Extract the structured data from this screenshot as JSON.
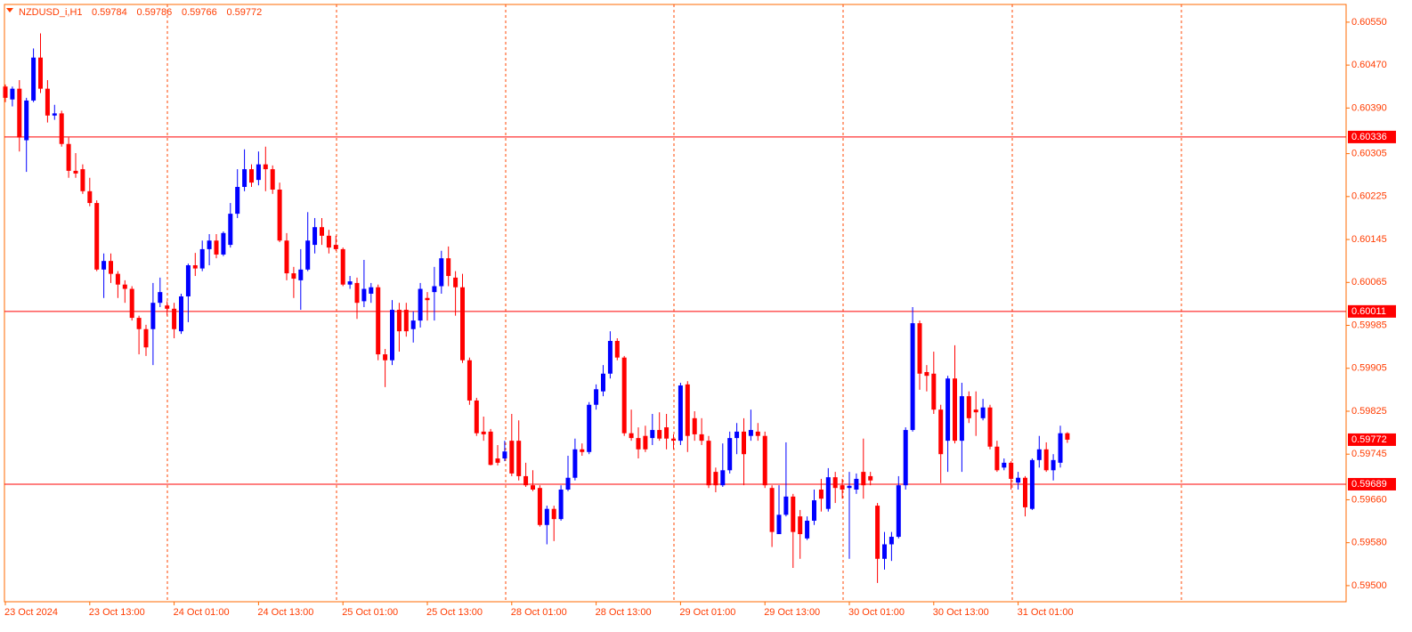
{
  "chart_data": {
    "type": "candlestick",
    "symbol": "NZDUSD_i,H1",
    "up_color": "#0000ff",
    "down_color": "#ff0000",
    "ylim": [
      0.5947,
      0.60583
    ],
    "yticks": [
      {
        "value": 0.6055,
        "label": "0.60550"
      },
      {
        "value": 0.6047,
        "label": "0.60470"
      },
      {
        "value": 0.6039,
        "label": "0.60390"
      },
      0.60305,
      0.60225,
      0.60145,
      0.60065,
      0.59985,
      0.59905,
      0.59825,
      0.59745,
      {
        "value": 0.5966,
        "label": "0.59660"
      },
      {
        "value": 0.5958,
        "label": "0.59580"
      },
      {
        "value": 0.595,
        "label": "0.59500"
      }
    ],
    "hlines": [
      0.60336,
      0.60011,
      0.59689
    ],
    "categories": [
      "23 Oct 2024",
      null,
      null,
      null,
      null,
      null,
      null,
      null,
      null,
      null,
      null,
      null,
      "23 Oct 13:00",
      null,
      null,
      null,
      null,
      null,
      null,
      null,
      null,
      null,
      null,
      null,
      "24 Oct 01:00",
      null,
      null,
      null,
      null,
      null,
      null,
      null,
      null,
      null,
      null,
      null,
      "24 Oct 13:00",
      null,
      null,
      null,
      null,
      null,
      null,
      null,
      null,
      null,
      null,
      null,
      "25 Oct 01:00",
      null,
      null,
      null,
      null,
      null,
      null,
      null,
      null,
      null,
      null,
      null,
      "25 Oct 13:00",
      null,
      null,
      null,
      null,
      null,
      null,
      null,
      null,
      null,
      null,
      null,
      "28 Oct 01:00",
      null,
      null,
      null,
      null,
      null,
      null,
      null,
      null,
      null,
      null,
      null,
      "28 Oct 13:00",
      null,
      null,
      null,
      null,
      null,
      null,
      null,
      null,
      null,
      null,
      null,
      "29 Oct 01:00",
      null,
      null,
      null,
      null,
      null,
      null,
      null,
      null,
      null,
      null,
      null,
      "29 Oct 13:00",
      null,
      null,
      null,
      null,
      null,
      null,
      null,
      null,
      null,
      null,
      null,
      "30 Oct 01:00",
      null,
      null,
      null,
      null,
      null,
      null,
      null,
      null,
      null,
      null,
      null,
      "30 Oct 13:00",
      null,
      null,
      null,
      null,
      null,
      null,
      null,
      null,
      null,
      null,
      null,
      "31 Oct 01:00",
      null,
      null,
      null,
      null,
      null,
      null,
      null
    ],
    "ohlc": [
      [
        0.6043,
        0.60434,
        0.60401,
        0.60409
      ],
      [
        0.60406,
        0.6043,
        0.60393,
        0.60426
      ],
      [
        0.60426,
        0.60442,
        0.60309,
        0.60335
      ],
      [
        0.6033,
        0.60409,
        0.60271,
        0.60404
      ],
      [
        0.60404,
        0.60501,
        0.60401,
        0.60484
      ],
      [
        0.60484,
        0.60529,
        0.60418,
        0.60426
      ],
      [
        0.60426,
        0.60442,
        0.60363,
        0.60376
      ],
      [
        0.60376,
        0.60396,
        0.60368,
        0.6038
      ],
      [
        0.6038,
        0.60385,
        0.60318,
        0.60323
      ],
      [
        0.60323,
        0.60335,
        0.6026,
        0.60273
      ],
      [
        0.60273,
        0.60306,
        0.6026,
        0.60268
      ],
      [
        0.60276,
        0.60285,
        0.6023,
        0.60235
      ],
      [
        0.60235,
        0.6026,
        0.60207,
        0.60213
      ],
      [
        0.60213,
        0.60218,
        0.60086,
        0.60089
      ],
      [
        0.60089,
        0.60119,
        0.60036,
        0.60105
      ],
      [
        0.60105,
        0.60119,
        0.60064,
        0.60081
      ],
      [
        0.60081,
        0.60086,
        0.60036,
        0.60061
      ],
      [
        0.60061,
        0.60069,
        0.60027,
        0.60053
      ],
      [
        0.60053,
        0.60058,
        0.59994,
        0.59999
      ],
      [
        0.59999,
        0.60003,
        0.59931,
        0.59978
      ],
      [
        0.59978,
        0.59986,
        0.59928,
        0.59944
      ],
      [
        0.59978,
        0.60064,
        0.59911,
        0.60027
      ],
      [
        0.60027,
        0.60074,
        0.60019,
        0.60047
      ],
      [
        0.60022,
        0.6003,
        0.60003,
        0.60016
      ],
      [
        0.60016,
        0.60027,
        0.59961,
        0.59978
      ],
      [
        0.59974,
        0.60044,
        0.59969,
        0.60039
      ],
      [
        0.60039,
        0.601,
        0.59991,
        0.60097
      ],
      [
        0.60097,
        0.6012,
        0.60077,
        0.60091
      ],
      [
        0.60091,
        0.60143,
        0.60086,
        0.60127
      ],
      [
        0.60127,
        0.60155,
        0.60097,
        0.60143
      ],
      [
        0.60143,
        0.60155,
        0.6011,
        0.60117
      ],
      [
        0.60117,
        0.6016,
        0.60114,
        0.60157
      ],
      [
        0.60135,
        0.60213,
        0.6013,
        0.60193
      ],
      [
        0.60193,
        0.60276,
        0.60185,
        0.60243
      ],
      [
        0.60243,
        0.60313,
        0.60235,
        0.60276
      ],
      [
        0.60276,
        0.60285,
        0.60243,
        0.60251
      ],
      [
        0.60256,
        0.60309,
        0.60246,
        0.60285
      ],
      [
        0.60285,
        0.60318,
        0.60235,
        0.60276
      ],
      [
        0.60276,
        0.60283,
        0.6023,
        0.60238
      ],
      [
        0.60238,
        0.60251,
        0.6014,
        0.60143
      ],
      [
        0.60143,
        0.60157,
        0.60069,
        0.60082
      ],
      [
        0.60082,
        0.60094,
        0.60036,
        0.60072
      ],
      [
        0.60069,
        0.60127,
        0.60014,
        0.60089
      ],
      [
        0.60089,
        0.60196,
        0.60086,
        0.60143
      ],
      [
        0.60135,
        0.60185,
        0.60119,
        0.60168
      ],
      [
        0.60168,
        0.60185,
        0.60135,
        0.60152
      ],
      [
        0.60152,
        0.60163,
        0.60119,
        0.6013
      ],
      [
        0.60135,
        0.60152,
        0.60124,
        0.60127
      ],
      [
        0.60127,
        0.6013,
        0.60058,
        0.60061
      ],
      [
        0.60061,
        0.60077,
        0.60053,
        0.60067
      ],
      [
        0.60064,
        0.60074,
        0.59997,
        0.60027
      ],
      [
        0.6003,
        0.60107,
        0.60019,
        0.60053
      ],
      [
        0.60044,
        0.60064,
        0.60027,
        0.60056
      ],
      [
        0.60056,
        0.60061,
        0.5992,
        0.59931
      ],
      [
        0.59931,
        0.59941,
        0.5987,
        0.5992
      ],
      [
        0.5992,
        0.60032,
        0.59911,
        0.60014
      ],
      [
        0.60014,
        0.60027,
        0.59936,
        0.59974
      ],
      [
        0.60014,
        0.60027,
        0.59964,
        0.59974
      ],
      [
        0.59978,
        0.60011,
        0.59953,
        0.59994
      ],
      [
        0.59994,
        0.60064,
        0.59981,
        0.60053
      ],
      [
        0.60036,
        0.60047,
        0.59994,
        0.60032
      ],
      [
        0.60047,
        0.60094,
        0.59994,
        0.60058
      ],
      [
        0.60058,
        0.60124,
        0.60044,
        0.6011
      ],
      [
        0.6011,
        0.60132,
        0.60058,
        0.60077
      ],
      [
        0.60074,
        0.60086,
        0.60003,
        0.60056
      ],
      [
        0.60056,
        0.60081,
        0.59915,
        0.5992
      ],
      [
        0.5992,
        0.59925,
        0.59837,
        0.59845
      ],
      [
        0.59845,
        0.5985,
        0.59779,
        0.59784
      ],
      [
        0.59787,
        0.59815,
        0.5977,
        0.59782
      ],
      [
        0.59787,
        0.59792,
        0.59724,
        0.59725
      ],
      [
        0.59737,
        0.59762,
        0.59724,
        0.59729
      ],
      [
        0.59737,
        0.5977,
        0.59732,
        0.5975
      ],
      [
        0.5977,
        0.5982,
        0.59704,
        0.59709
      ],
      [
        0.5977,
        0.59808,
        0.59696,
        0.59704
      ],
      [
        0.59704,
        0.59729,
        0.59684,
        0.59687
      ],
      [
        0.59687,
        0.59715,
        0.59676,
        0.59679
      ],
      [
        0.59682,
        0.59687,
        0.5961,
        0.59613
      ],
      [
        0.59613,
        0.59649,
        0.59577,
        0.59643
      ],
      [
        0.59643,
        0.59649,
        0.59583,
        0.59624
      ],
      [
        0.59624,
        0.59687,
        0.59621,
        0.59679
      ],
      [
        0.59679,
        0.59742,
        0.59676,
        0.59701
      ],
      [
        0.59701,
        0.59774,
        0.59696,
        0.59754
      ],
      [
        0.59754,
        0.59765,
        0.59742,
        0.59749
      ],
      [
        0.59749,
        0.59842,
        0.59745,
        0.59837
      ],
      [
        0.59837,
        0.59875,
        0.59828,
        0.59866
      ],
      [
        0.59862,
        0.59911,
        0.59853,
        0.59895
      ],
      [
        0.59895,
        0.59974,
        0.59886,
        0.59956
      ],
      [
        0.59956,
        0.59961,
        0.5992,
        0.59925
      ],
      [
        0.59925,
        0.59928,
        0.59779,
        0.59784
      ],
      [
        0.59784,
        0.59828,
        0.5977,
        0.59775
      ],
      [
        0.59775,
        0.59795,
        0.59737,
        0.59754
      ],
      [
        0.59779,
        0.59798,
        0.59749,
        0.59754
      ],
      [
        0.59775,
        0.5982,
        0.59762,
        0.5979
      ],
      [
        0.5979,
        0.59823,
        0.5977,
        0.59774
      ],
      [
        0.59795,
        0.5982,
        0.59754,
        0.59774
      ],
      [
        0.59774,
        0.59782,
        0.59754,
        0.5977
      ],
      [
        0.5977,
        0.59878,
        0.59762,
        0.59873
      ],
      [
        0.59875,
        0.59881,
        0.59749,
        0.59779
      ],
      [
        0.59812,
        0.59825,
        0.5977,
        0.59782
      ],
      [
        0.59782,
        0.59812,
        0.59762,
        0.5977
      ],
      [
        0.5977,
        0.59779,
        0.59682,
        0.59687
      ],
      [
        0.59712,
        0.5972,
        0.59674,
        0.59687
      ],
      [
        0.59687,
        0.59765,
        0.59684,
        0.59715
      ],
      [
        0.59715,
        0.59787,
        0.59709,
        0.59775
      ],
      [
        0.59775,
        0.59803,
        0.59745,
        0.59787
      ],
      [
        0.59787,
        0.59812,
        0.59687,
        0.59745
      ],
      [
        0.59779,
        0.59828,
        0.5977,
        0.5979
      ],
      [
        0.59787,
        0.59803,
        0.5977,
        0.59779
      ],
      [
        0.59779,
        0.59787,
        0.59682,
        0.59687
      ],
      [
        0.59682,
        0.59687,
        0.59572,
        0.596
      ],
      [
        0.59596,
        0.59687,
        0.59596,
        0.59632
      ],
      [
        0.59632,
        0.59767,
        0.59629,
        0.59666
      ],
      [
        0.59666,
        0.59671,
        0.59533,
        0.596
      ],
      [
        0.59629,
        0.59641,
        0.5955,
        0.59596
      ],
      [
        0.59588,
        0.59629,
        0.59585,
        0.59621
      ],
      [
        0.59621,
        0.59679,
        0.59613,
        0.59659
      ],
      [
        0.59679,
        0.59699,
        0.59638,
        0.59662
      ],
      [
        0.59643,
        0.59719,
        0.59638,
        0.59702
      ],
      [
        0.59702,
        0.59712,
        0.59654,
        0.59682
      ],
      [
        0.59687,
        0.59699,
        0.59662,
        0.59679
      ],
      [
        0.59682,
        0.59712,
        0.5955,
        0.59686
      ],
      [
        0.59679,
        0.59709,
        0.59671,
        0.59699
      ],
      [
        0.59712,
        0.59774,
        0.59662,
        0.59687
      ],
      [
        0.59704,
        0.59712,
        0.59687,
        0.59696
      ],
      [
        0.59649,
        0.59654,
        0.59505,
        0.5955
      ],
      [
        0.5955,
        0.596,
        0.5953,
        0.59577
      ],
      [
        0.59577,
        0.596,
        0.59546,
        0.59591
      ],
      [
        0.59591,
        0.59704,
        0.59588,
        0.59687
      ],
      [
        0.59687,
        0.59795,
        0.59679,
        0.5979
      ],
      [
        0.5979,
        0.60019,
        0.59787,
        0.59989
      ],
      [
        0.59989,
        0.59994,
        0.59865,
        0.59895
      ],
      [
        0.59898,
        0.59911,
        0.59862,
        0.59891
      ],
      [
        0.59895,
        0.59936,
        0.5982,
        0.59828
      ],
      [
        0.59828,
        0.59837,
        0.59691,
        0.59745
      ],
      [
        0.5977,
        0.59891,
        0.59712,
        0.59886
      ],
      [
        0.59886,
        0.59948,
        0.59765,
        0.5977
      ],
      [
        0.5977,
        0.59878,
        0.59712,
        0.59853
      ],
      [
        0.59853,
        0.59862,
        0.59803,
        0.59812
      ],
      [
        0.59828,
        0.59862,
        0.59779,
        0.59823
      ],
      [
        0.59812,
        0.59848,
        0.59808,
        0.59832
      ],
      [
        0.59832,
        0.59837,
        0.59754,
        0.59759
      ],
      [
        0.59759,
        0.5977,
        0.59712,
        0.59715
      ],
      [
        0.5972,
        0.59737,
        0.59715,
        0.59729
      ],
      [
        0.59729,
        0.59732,
        0.59679,
        0.59699
      ],
      [
        0.59692,
        0.59712,
        0.59679,
        0.59701
      ],
      [
        0.59701,
        0.59704,
        0.59629,
        0.59646
      ],
      [
        0.59643,
        0.59737,
        0.59641,
        0.59734
      ],
      [
        0.59734,
        0.59779,
        0.5972,
        0.59754
      ],
      [
        0.59754,
        0.59767,
        0.59712,
        0.59715
      ],
      [
        0.59715,
        0.59745,
        0.59696,
        0.59734
      ],
      [
        0.59729,
        0.59798,
        0.5972,
        0.59784
      ],
      [
        0.59784,
        0.59786,
        0.59766,
        0.59772
      ]
    ]
  }
}
